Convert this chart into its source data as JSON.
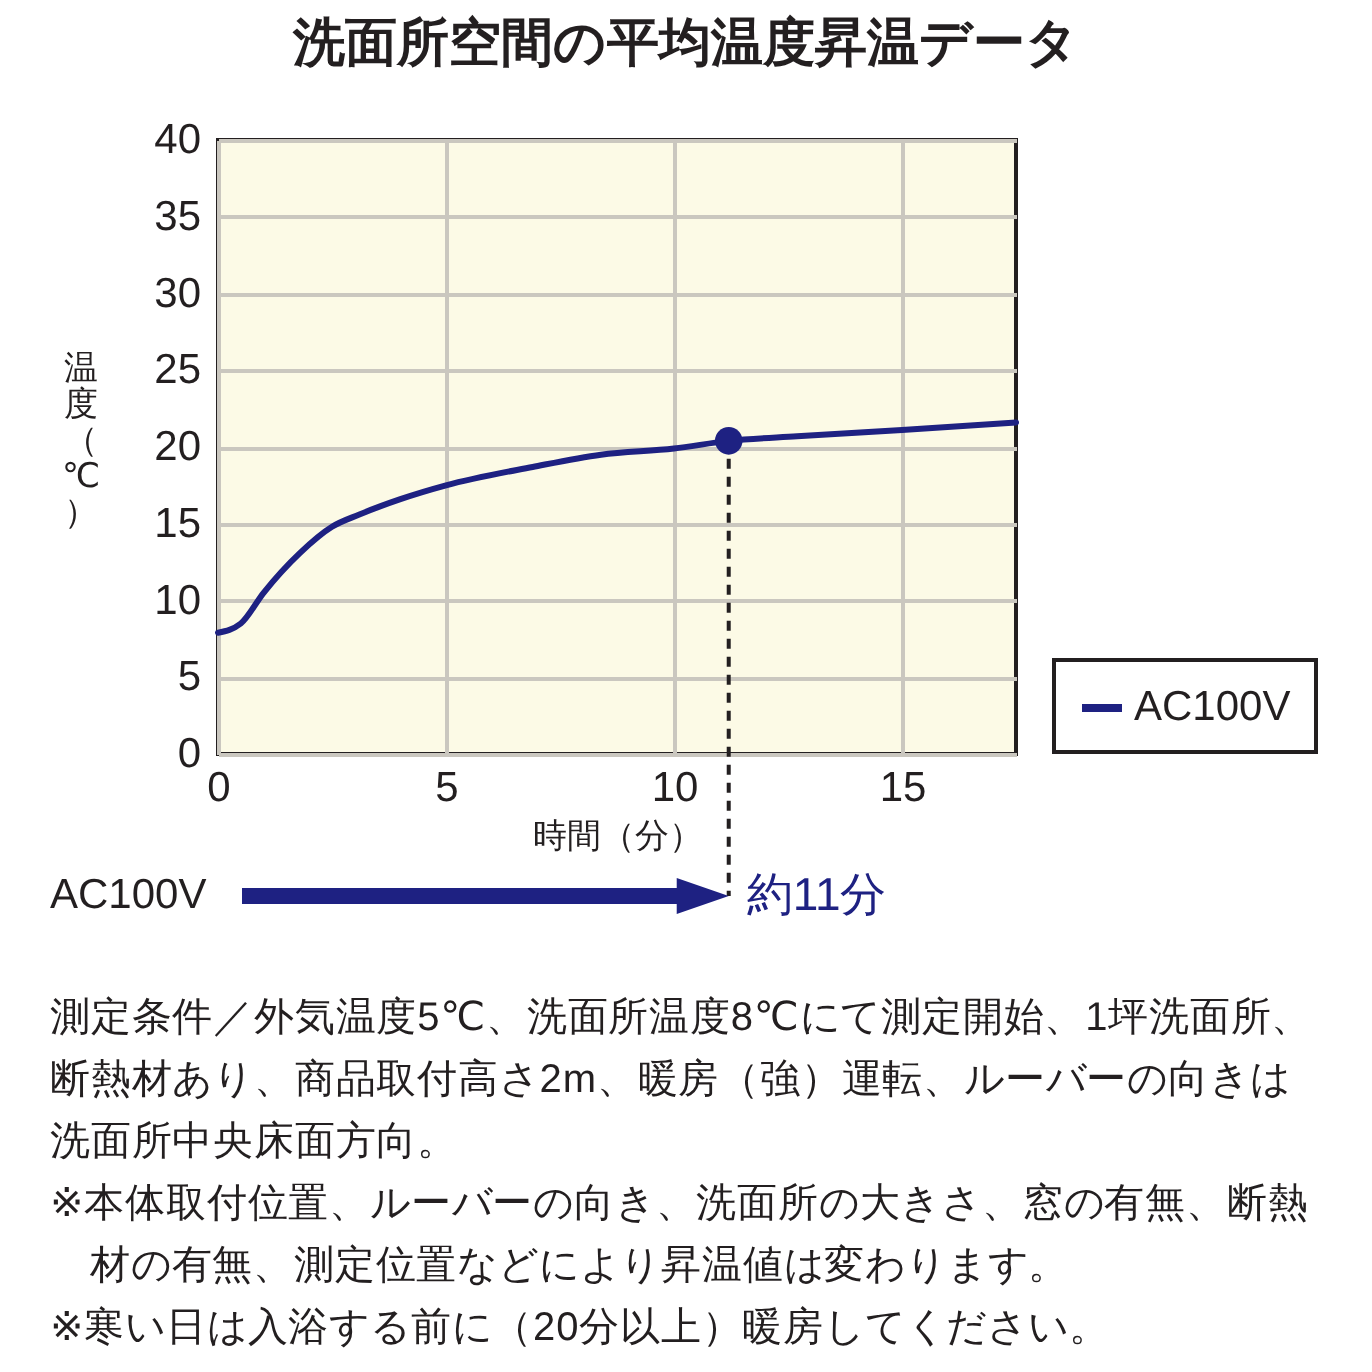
{
  "chart_data": {
    "type": "line",
    "title": "洗面所空間の平均温度昇温データ",
    "xlabel": "時間（分）",
    "ylabel": "温度（℃）",
    "x": [
      0,
      0.5,
      1,
      1.8,
      2.5,
      3.1,
      4,
      5,
      6.9,
      8.4,
      10,
      11.2,
      12.7,
      15,
      17.5
    ],
    "series": [
      {
        "name": "AC100V",
        "color": "#1e2182",
        "values": [
          7.9,
          8.5,
          10.5,
          13.1,
          14.8,
          15.6,
          16.6,
          17.5,
          18.7,
          19.5,
          19.9,
          20.4,
          20.7,
          21.1,
          21.6
        ]
      }
    ],
    "xlim": [
      0,
      17.5
    ],
    "xticks": [
      0,
      5,
      10,
      15
    ],
    "ylim": [
      0,
      40
    ],
    "yticks": [
      0,
      5,
      10,
      15,
      20,
      25,
      30,
      35,
      40
    ],
    "grid": true,
    "legend": "bottom right",
    "annotations": [
      "AC100V",
      {
        "text": "約11分",
        "x": 11.2,
        "y": 20.4
      },
      "測定条件／外気温度5℃、洗面所温度8℃にて測定開始、1坪洗面所、断熱材あり、商品取付高さ2m、暖房（強）運転、ルーバーの向きは洗面所中央床面方向。",
      "※本体取付位置、ルーバーの向き、洗面所の大きさ、窓の有無、断熱材の有無、測定位置などにより昇温値は変わります。",
      "※寒い日は入浴する前に（20分以上）暖房してください。"
    ]
  }
}
